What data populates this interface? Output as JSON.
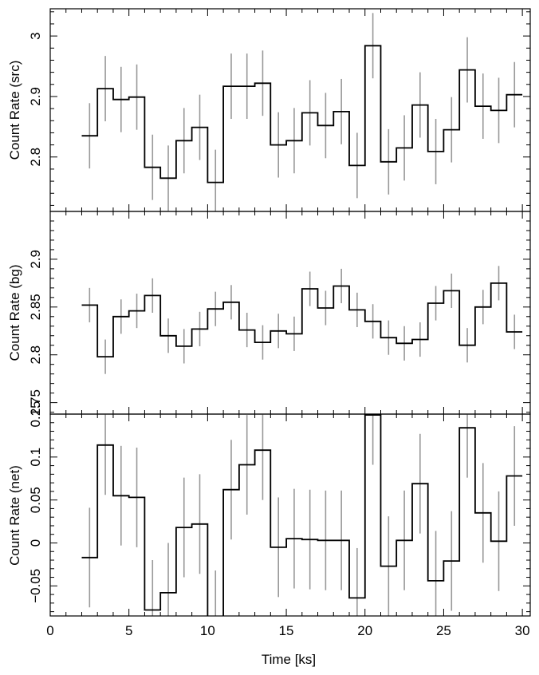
{
  "chart_data": [
    {
      "type": "line",
      "ylabel": "Count Rate (src)",
      "xlim": [
        0,
        30.5
      ],
      "ylim": [
        2.71,
        3.045
      ],
      "xticks": [
        0,
        5,
        10,
        15,
        20,
        25,
        30
      ],
      "yticks": [
        2.8,
        2.9,
        3
      ],
      "ytick_labels": [
        "2.8",
        "2.9",
        "3"
      ],
      "bin_width": 1,
      "series": [
        {
          "x": [
            2.5,
            3.5,
            4.5,
            5.5,
            6.5,
            7.5,
            8.5,
            9.5,
            10.5,
            11.5,
            12.5,
            13.5,
            14.5,
            15.5,
            16.5,
            17.5,
            18.5,
            19.5,
            20.5,
            21.5,
            22.5,
            23.5,
            24.5,
            25.5,
            26.5,
            27.5,
            28.5,
            29.5
          ],
          "y": [
            2.835,
            2.913,
            2.895,
            2.899,
            2.783,
            2.765,
            2.827,
            2.849,
            2.758,
            2.917,
            2.917,
            2.922,
            2.82,
            2.827,
            2.873,
            2.852,
            2.875,
            2.786,
            2.984,
            2.792,
            2.815,
            2.886,
            2.809,
            2.845,
            2.944,
            2.884,
            2.877,
            2.903
          ],
          "err": [
            0.054,
            0.054,
            0.054,
            0.054,
            0.054,
            0.054,
            0.054,
            0.054,
            0.054,
            0.054,
            0.054,
            0.054,
            0.054,
            0.054,
            0.054,
            0.054,
            0.054,
            0.054,
            0.054,
            0.054,
            0.054,
            0.054,
            0.054,
            0.054,
            0.054,
            0.054,
            0.054,
            0.054
          ]
        }
      ]
    },
    {
      "type": "line",
      "ylabel": "Count Rate (bg)",
      "xlim": [
        0,
        30.5
      ],
      "ylim": [
        2.738,
        2.95
      ],
      "xticks": [
        0,
        5,
        10,
        15,
        20,
        25,
        30
      ],
      "yticks": [
        2.75,
        2.8,
        2.85,
        2.9
      ],
      "ytick_labels": [
        "2.75",
        "2.8",
        "2.85",
        "2.9"
      ],
      "bin_width": 1,
      "series": [
        {
          "x": [
            2.5,
            3.5,
            4.5,
            5.5,
            6.5,
            7.5,
            8.5,
            9.5,
            10.5,
            11.5,
            12.5,
            13.5,
            14.5,
            15.5,
            16.5,
            17.5,
            18.5,
            19.5,
            20.5,
            21.5,
            22.5,
            23.5,
            24.5,
            25.5,
            26.5,
            27.5,
            28.5,
            29.5
          ],
          "y": [
            2.852,
            2.798,
            2.84,
            2.846,
            2.862,
            2.82,
            2.809,
            2.827,
            2.848,
            2.855,
            2.826,
            2.813,
            2.825,
            2.822,
            2.869,
            2.849,
            2.872,
            2.847,
            2.835,
            2.818,
            2.812,
            2.816,
            2.854,
            2.867,
            2.81,
            2.85,
            2.875,
            2.824
          ],
          "err": [
            0.018,
            0.018,
            0.018,
            0.018,
            0.018,
            0.018,
            0.018,
            0.018,
            0.018,
            0.018,
            0.018,
            0.018,
            0.018,
            0.018,
            0.018,
            0.018,
            0.018,
            0.018,
            0.018,
            0.018,
            0.018,
            0.018,
            0.018,
            0.018,
            0.018,
            0.018,
            0.018,
            0.018
          ]
        }
      ]
    },
    {
      "type": "line",
      "ylabel": "Count Rate (net)",
      "xlabel": "Time [ks]",
      "xlim": [
        0,
        30.5
      ],
      "ylim": [
        -0.085,
        0.15
      ],
      "xticks": [
        0,
        5,
        10,
        15,
        20,
        25,
        30
      ],
      "xtick_labels": [
        "0",
        "5",
        "10",
        "15",
        "20",
        "25",
        "30"
      ],
      "yticks": [
        -0.05,
        0,
        0.05,
        0.1,
        0.15
      ],
      "ytick_labels": [
        "−0.05",
        "0",
        "0.05",
        "0.1",
        "0.15"
      ],
      "bin_width": 1,
      "series": [
        {
          "x": [
            2.5,
            3.5,
            4.5,
            5.5,
            6.5,
            7.5,
            8.5,
            9.5,
            10.5,
            11.5,
            12.5,
            13.5,
            14.5,
            15.5,
            16.5,
            17.5,
            18.5,
            19.5,
            20.5,
            21.5,
            22.5,
            23.5,
            24.5,
            25.5,
            26.5,
            27.5,
            28.5,
            29.5
          ],
          "y": [
            -0.017,
            0.114,
            0.055,
            0.053,
            -0.078,
            -0.058,
            0.018,
            0.022,
            -0.09,
            0.062,
            0.091,
            0.108,
            -0.005,
            0.005,
            0.004,
            0.003,
            0.003,
            -0.064,
            0.149,
            -0.027,
            0.003,
            0.069,
            -0.044,
            -0.021,
            0.134,
            0.035,
            0.002,
            0.078
          ],
          "err": [
            0.058,
            0.058,
            0.058,
            0.058,
            0.058,
            0.058,
            0.058,
            0.058,
            0.058,
            0.058,
            0.058,
            0.058,
            0.058,
            0.058,
            0.058,
            0.058,
            0.058,
            0.058,
            0.058,
            0.058,
            0.058,
            0.058,
            0.058,
            0.058,
            0.058,
            0.058,
            0.058,
            0.058
          ]
        }
      ]
    }
  ]
}
